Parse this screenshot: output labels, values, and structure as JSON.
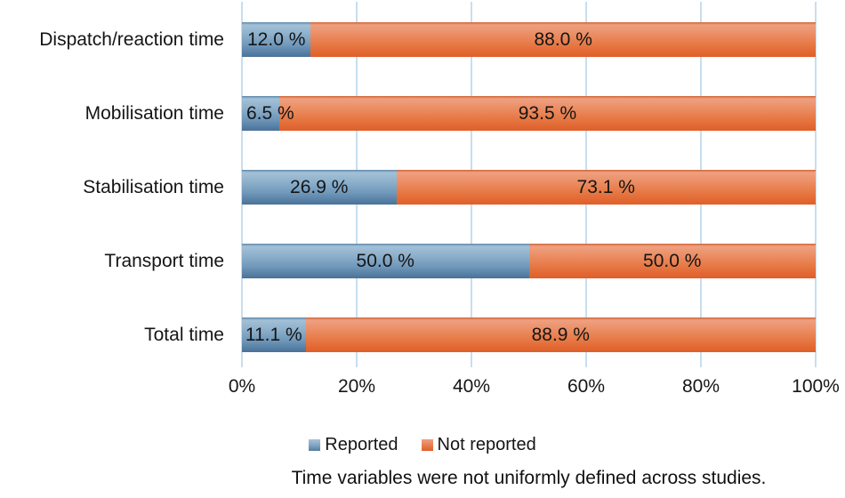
{
  "chart_data": {
    "type": "bar",
    "orientation": "horizontal",
    "stacked": true,
    "grid": true,
    "gridline_color": "#c7def0",
    "xlim": [
      0,
      100
    ],
    "x_ticks": [
      "0%",
      "20%",
      "40%",
      "60%",
      "80%",
      "100%"
    ],
    "categories": [
      "Dispatch/reaction time",
      "Mobilisation time",
      "Stabilisation time",
      "Transport time",
      "Total time"
    ],
    "series": [
      {
        "name": "Reported",
        "color": "#6d94b6",
        "values": [
          12.0,
          6.5,
          26.9,
          50.0,
          11.1
        ]
      },
      {
        "name": "Not reported",
        "color": "#e8764a",
        "values": [
          88.0,
          93.5,
          73.1,
          50.0,
          88.9
        ]
      }
    ],
    "rows": [
      {
        "category": "Dispatch/reaction time",
        "reported": 12.0,
        "reported_label": "12.0 %",
        "not_reported": 88.0,
        "not_reported_label": "88.0 %"
      },
      {
        "category": "Mobilisation time",
        "reported": 6.5,
        "reported_label": "6.5 %",
        "not_reported": 93.5,
        "not_reported_label": "93.5 %"
      },
      {
        "category": "Stabilisation time",
        "reported": 26.9,
        "reported_label": "26.9 %",
        "not_reported": 73.1,
        "not_reported_label": "73.1 %"
      },
      {
        "category": "Transport time",
        "reported": 50.0,
        "reported_label": "50.0 %",
        "not_reported": 50.0,
        "not_reported_label": "50.0 %"
      },
      {
        "category": "Total time",
        "reported": 11.1,
        "reported_label": "11.1 %",
        "not_reported": 88.9,
        "not_reported_label": "88.9 %"
      }
    ],
    "legend": {
      "position": "bottom",
      "items": [
        {
          "label": "Reported",
          "color": "#6d94b6"
        },
        {
          "label": "Not reported",
          "color": "#e8764a"
        }
      ]
    },
    "caption": "Time variables were not uniformly defined across studies."
  }
}
